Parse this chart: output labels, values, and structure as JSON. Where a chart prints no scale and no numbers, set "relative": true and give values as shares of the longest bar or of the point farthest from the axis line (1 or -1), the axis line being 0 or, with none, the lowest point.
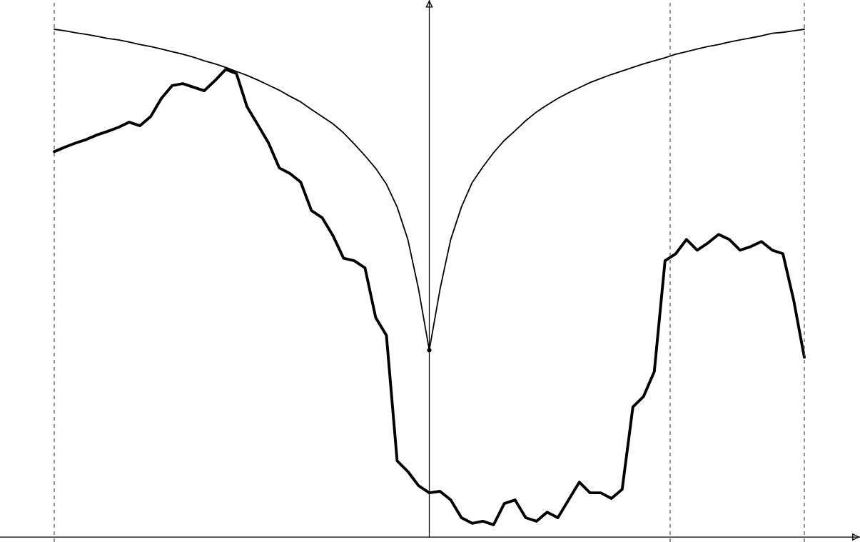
{
  "chart_data": {
    "type": "line",
    "relative": true,
    "categories": [
      null,
      null,
      null,
      null,
      null,
      null,
      null,
      null,
      null,
      null,
      null,
      null,
      null,
      null,
      null,
      null,
      null,
      null,
      null,
      null,
      null,
      null,
      null,
      null,
      null,
      null,
      null,
      null,
      null,
      null,
      null,
      null,
      null,
      null,
      null,
      null,
      null,
      null,
      null,
      null,
      null,
      null,
      null,
      null,
      null,
      null,
      null,
      null,
      null,
      null,
      null,
      null,
      null,
      null,
      null,
      null,
      null,
      null,
      null,
      null,
      null,
      null,
      null,
      null,
      null,
      null,
      null,
      null,
      null,
      null,
      null
    ],
    "series": [
      {
        "color": "#000000",
        "values": [
          1.0,
          0.997,
          0.993,
          0.99,
          0.986,
          0.982,
          0.979,
          0.975,
          0.97,
          0.966,
          0.961,
          0.956,
          0.951,
          0.945,
          0.938,
          0.932,
          0.925,
          0.917,
          0.909,
          0.9,
          0.89,
          0.88,
          0.868,
          0.857,
          0.842,
          0.828,
          0.814,
          0.796,
          0.774,
          0.751,
          0.726,
          0.695,
          0.65,
          0.586,
          0.488,
          0.368,
          0.488,
          0.586,
          0.65,
          0.698,
          0.729,
          0.757,
          0.781,
          0.8,
          0.82,
          0.837,
          0.851,
          0.864,
          0.875,
          0.885,
          0.895,
          0.903,
          0.911,
          0.918,
          0.925,
          0.932,
          0.938,
          0.944,
          0.951,
          0.956,
          0.961,
          0.966,
          0.97,
          0.975,
          0.979,
          0.983,
          0.987,
          0.992,
          0.994,
          0.997,
          1.0
        ]
      },
      {
        "color": "#000000",
        "values": [
          0.759,
          0.768,
          0.776,
          0.783,
          0.792,
          0.799,
          0.807,
          0.817,
          0.81,
          0.828,
          0.864,
          0.889,
          0.893,
          0.886,
          0.879,
          0.899,
          0.921,
          0.913,
          0.847,
          0.812,
          0.776,
          0.727,
          0.716,
          0.699,
          0.643,
          0.629,
          0.594,
          0.549,
          0.544,
          0.53,
          0.432,
          0.397,
          0.15,
          0.129,
          0.101,
          0.087,
          0.09,
          0.073,
          0.038,
          0.027,
          0.031,
          0.024,
          0.066,
          0.073,
          0.038,
          0.031,
          0.049,
          0.038,
          0.073,
          0.108,
          0.087,
          0.087,
          0.076,
          0.094,
          0.256,
          0.277,
          0.326,
          0.544,
          0.558,
          0.586,
          0.565,
          0.579,
          0.596,
          0.586,
          0.565,
          0.572,
          0.582,
          0.565,
          0.558,
          0.467,
          0.354
        ]
      }
    ]
  }
}
